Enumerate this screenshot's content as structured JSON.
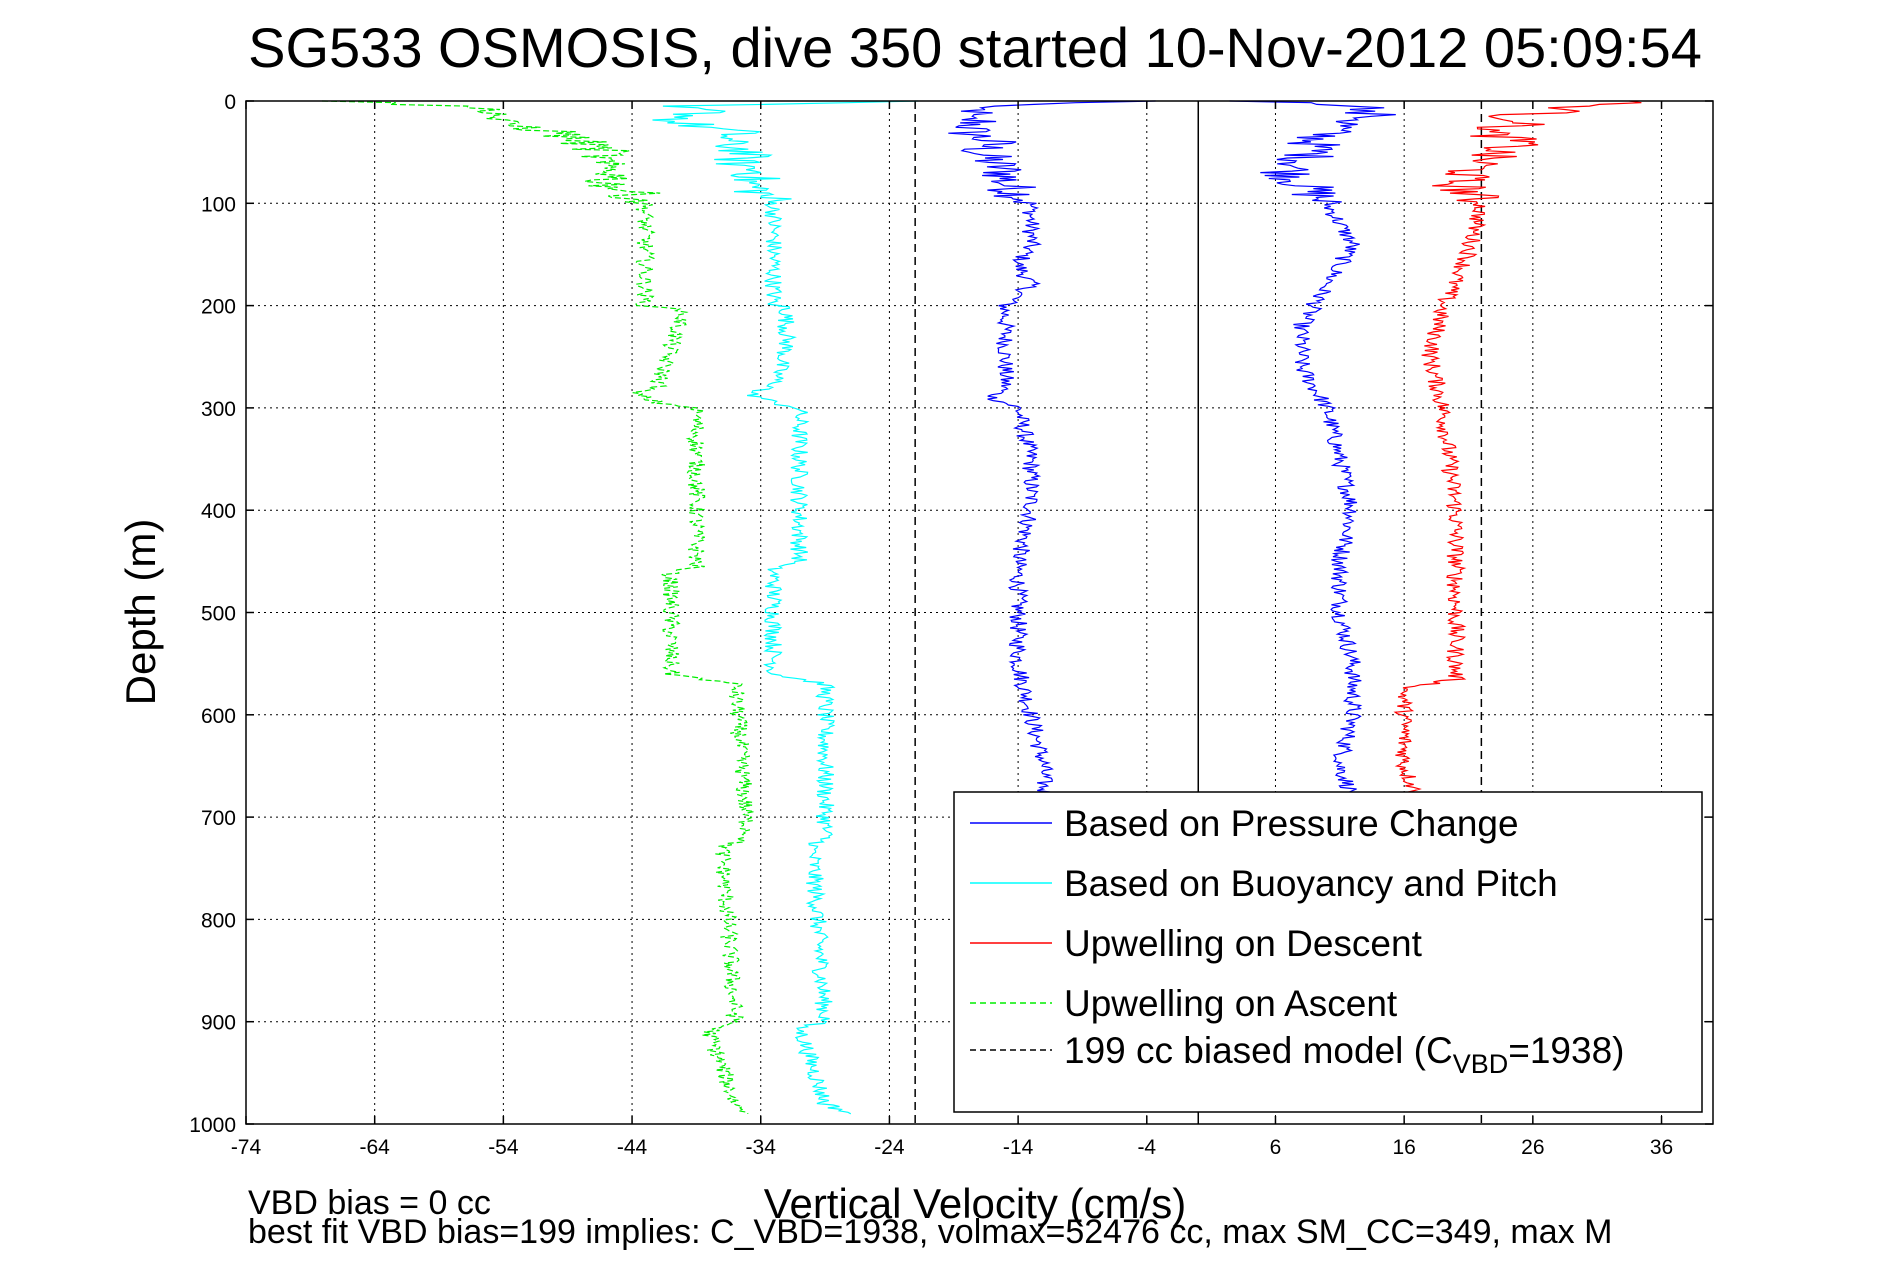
{
  "chart_data": {
    "type": "line",
    "title": "SG533 OSMOSIS, dive 350 started 10-Nov-2012 05:09:54",
    "xlabel": "Vertical Velocity (cm/s)",
    "ylabel": "Depth (m)",
    "xlim": [
      -74,
      40
    ],
    "ylim": [
      1000,
      0
    ],
    "y_reversed": true,
    "grid": true,
    "xticks": [
      "-74",
      "-64",
      "-54",
      "-44",
      "-34",
      "-24",
      "-14",
      "-4",
      "6",
      "16",
      "26",
      "36"
    ],
    "yticks": [
      "0",
      "100",
      "200",
      "300",
      "400",
      "500",
      "600",
      "700",
      "800",
      "900",
      "1000"
    ],
    "legend_position": "bottom-right",
    "series": [
      {
        "name": "Based on Pressure Change",
        "color": "#0000ff",
        "style": "solid",
        "depth": [
          0,
          5,
          10,
          15,
          20,
          30,
          40,
          50,
          60,
          70,
          80,
          90,
          100,
          120,
          140,
          160,
          180,
          200,
          220,
          240,
          260,
          280,
          290,
          300,
          350,
          400,
          450,
          500,
          550,
          600,
          650,
          680
        ],
        "x": [
          -4,
          -18,
          -17,
          -19,
          -17,
          -18,
          -16,
          -17,
          -16,
          -15,
          -15,
          -14,
          -13,
          -13,
          -13,
          -14,
          -13,
          -15,
          -15,
          -15,
          -15,
          -15,
          -16,
          -14,
          -13,
          -13,
          -14,
          -14,
          -14,
          -13,
          -12,
          -12
        ]
      },
      {
        "name": "Based on Pressure Change",
        "color": "#0000ff",
        "style": "solid",
        "depth": [
          0,
          5,
          10,
          15,
          20,
          30,
          40,
          50,
          60,
          70,
          80,
          90,
          100,
          120,
          140,
          160,
          180,
          200,
          220,
          240,
          260,
          280,
          300,
          350,
          400,
          450,
          500,
          550,
          600,
          650,
          680
        ],
        "x": [
          4,
          14,
          12,
          14,
          12,
          10,
          9,
          9,
          8,
          7,
          8,
          9,
          10,
          11,
          12,
          11,
          10,
          9,
          8,
          8,
          8,
          9,
          10,
          11,
          12,
          11,
          11,
          12,
          12,
          11,
          12
        ]
      },
      {
        "name": "Based on Buoyancy and Pitch",
        "color": "#00ffff",
        "style": "solid",
        "depth": [
          0,
          5,
          10,
          20,
          30,
          40,
          50,
          60,
          70,
          80,
          90,
          100,
          200,
          201,
          240,
          280,
          285,
          295,
          300,
          450,
          455,
          560,
          570,
          720,
          730,
          900,
          905,
          980,
          990
        ],
        "x": [
          -23,
          -42,
          -38,
          -41,
          -36,
          -37,
          -35,
          -36,
          -34,
          -35,
          -34,
          -33,
          -33,
          -32,
          -32,
          -33,
          -35,
          -33,
          -31,
          -31,
          -33,
          -33,
          -29,
          -29,
          -30,
          -29,
          -31,
          -29,
          -27
        ]
      },
      {
        "name": "Upwelling on Descent",
        "color": "#ff0000",
        "style": "solid",
        "depth": [
          0,
          5,
          10,
          15,
          20,
          30,
          40,
          50,
          60,
          70,
          80,
          90,
          100,
          150,
          200,
          250,
          300,
          400,
          500,
          565,
          575,
          650,
          680
        ],
        "x": [
          34,
          30,
          28,
          24,
          26,
          22,
          25,
          23,
          22,
          21,
          20,
          21,
          22,
          21,
          19,
          18,
          19,
          20,
          20,
          20,
          16,
          16,
          17
        ]
      },
      {
        "name": "Upwelling on Ascent",
        "color": "#00ee00",
        "style": "dashed",
        "depth": [
          0,
          5,
          10,
          20,
          30,
          40,
          50,
          60,
          70,
          80,
          90,
          100,
          200,
          205,
          240,
          280,
          285,
          295,
          300,
          455,
          460,
          560,
          570,
          720,
          730,
          900,
          910,
          980,
          990
        ],
        "x": [
          -67,
          -58,
          -54,
          -55,
          -50,
          -48,
          -46,
          -47,
          -45,
          -46,
          -44,
          -43,
          -43,
          -40,
          -41,
          -42,
          -44,
          -42,
          -39,
          -39,
          -41,
          -41,
          -36,
          -35,
          -37,
          -36,
          -38,
          -36,
          -35
        ]
      }
    ],
    "reference_lines": [
      {
        "name": "199 cc biased model",
        "x": -22,
        "style": "dashed",
        "color": "#000000"
      },
      {
        "x": 0,
        "style": "solid",
        "color": "#000000"
      },
      {
        "x": 22,
        "style": "dashed",
        "color": "#000000"
      }
    ],
    "legend": [
      {
        "label": "Based on Pressure Change",
        "color": "#0000ff",
        "style": "solid"
      },
      {
        "label": "Based on Buoyancy and Pitch",
        "color": "#00ffff",
        "style": "solid"
      },
      {
        "label": "Upwelling on Descent",
        "color": "#ff0000",
        "style": "solid"
      },
      {
        "label": "Upwelling on Ascent",
        "color": "#00ee00",
        "style": "dashed"
      },
      {
        "label": "199 cc biased model (C",
        "label_sub": "VBD",
        "label_suffix": "=1938)",
        "color": "#000000",
        "style": "dashed"
      }
    ],
    "annotations": [
      "VBD bias = 0 cc",
      "best fit VBD bias=199 implies: C_VBD=1938, volmax=52476 cc, max SM_CC=349, max M"
    ]
  }
}
